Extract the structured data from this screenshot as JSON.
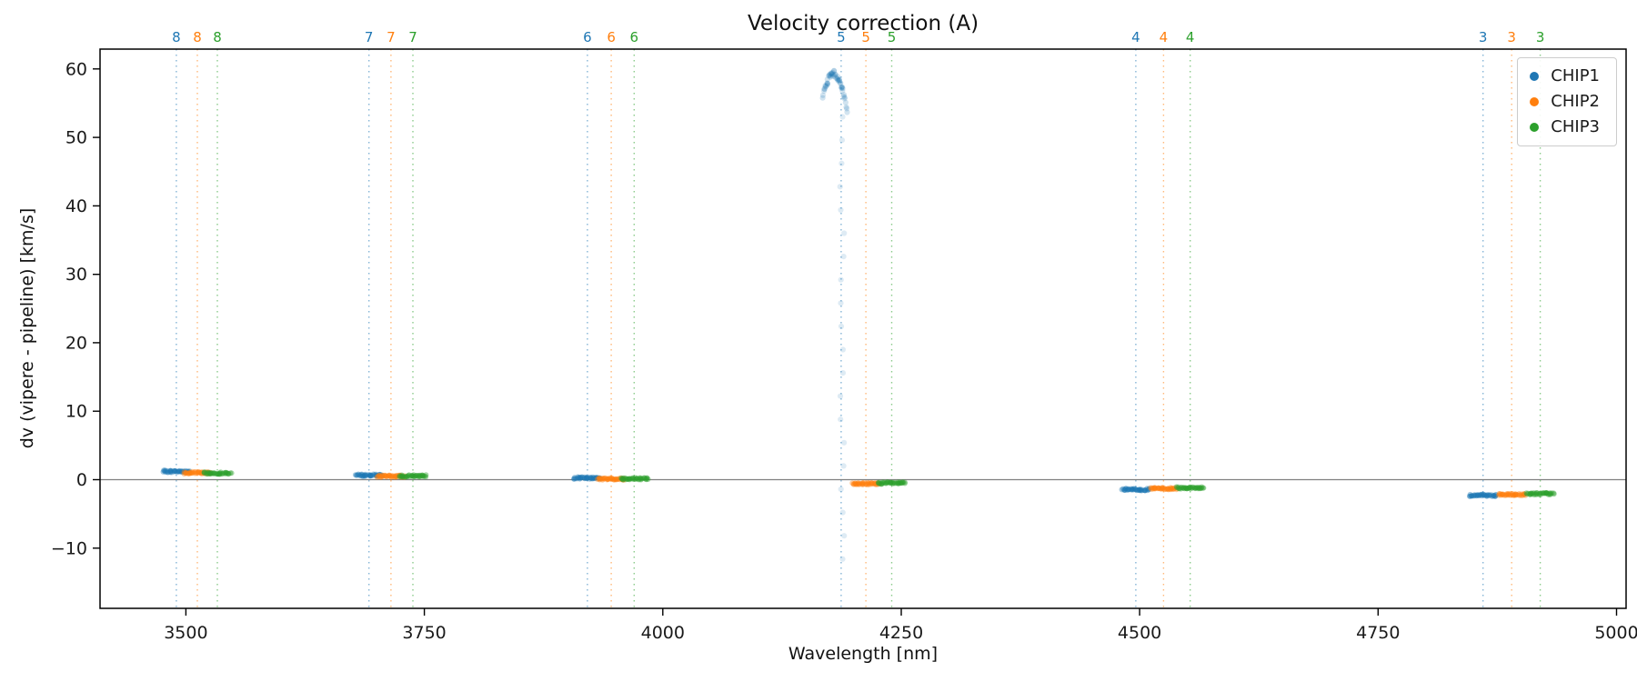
{
  "chart_data": {
    "type": "scatter",
    "title": "Velocity correction (A)",
    "xlabel": "Wavelength [nm]",
    "ylabel": "dv (vipere - pipeline) [km/s]",
    "xlim": [
      3410,
      5010
    ],
    "ylim": [
      -18.8,
      62.9
    ],
    "xticks": [
      3500,
      3750,
      4000,
      4250,
      4500,
      4750,
      5000
    ],
    "yticks": [
      -10,
      0,
      10,
      20,
      30,
      40,
      50,
      60
    ],
    "grid": false,
    "zero_line_y": 0,
    "legend_position": "upper right",
    "legend": [
      "CHIP1",
      "CHIP2",
      "CHIP3"
    ],
    "series_colors": {
      "CHIP1": "#1f77b4",
      "CHIP2": "#ff7f0e",
      "CHIP3": "#2ca02c"
    },
    "axis_color": "#000000",
    "zero_line_color": "#7f7f7f",
    "points_per_cluster": 40,
    "cluster_halfwidth_nm": 14,
    "orders": [
      {
        "order": 8,
        "lines": {
          "CHIP1": 3490,
          "CHIP2": 3512,
          "CHIP3": 3533
        },
        "dv": {
          "CHIP1": 1.2,
          "CHIP2": 1.0,
          "CHIP3": 0.95
        }
      },
      {
        "order": 7,
        "lines": {
          "CHIP1": 3692,
          "CHIP2": 3715,
          "CHIP3": 3738
        },
        "dv": {
          "CHIP1": 0.65,
          "CHIP2": 0.5,
          "CHIP3": 0.55
        }
      },
      {
        "order": 6,
        "lines": {
          "CHIP1": 3921,
          "CHIP2": 3946,
          "CHIP3": 3970
        },
        "dv": {
          "CHIP1": 0.25,
          "CHIP2": 0.1,
          "CHIP3": 0.15
        }
      },
      {
        "order": 5,
        "lines": {
          "CHIP1": 4187,
          "CHIP2": 4213,
          "CHIP3": 4240
        },
        "dv": {
          "CHIP1": null,
          "CHIP2": -0.6,
          "CHIP3": -0.5
        }
      },
      {
        "order": 4,
        "lines": {
          "CHIP1": 4496,
          "CHIP2": 4525,
          "CHIP3": 4553
        },
        "dv": {
          "CHIP1": -1.45,
          "CHIP2": -1.3,
          "CHIP3": -1.2
        }
      },
      {
        "order": 3,
        "lines": {
          "CHIP1": 4860,
          "CHIP2": 4890,
          "CHIP3": 4920
        },
        "dv": {
          "CHIP1": -2.3,
          "CHIP2": -2.2,
          "CHIP3": -2.05
        }
      }
    ],
    "anomaly": {
      "chip": "CHIP1",
      "order": 5,
      "blob": {
        "x_from": 4168,
        "x_to": 4193,
        "x_peak": 4179,
        "y_peak": 59.3,
        "curvature": 0.028,
        "n": 55
      },
      "trail": {
        "x": 4188,
        "y_from": 53,
        "y_to": -14,
        "step": 3.4
      }
    }
  }
}
